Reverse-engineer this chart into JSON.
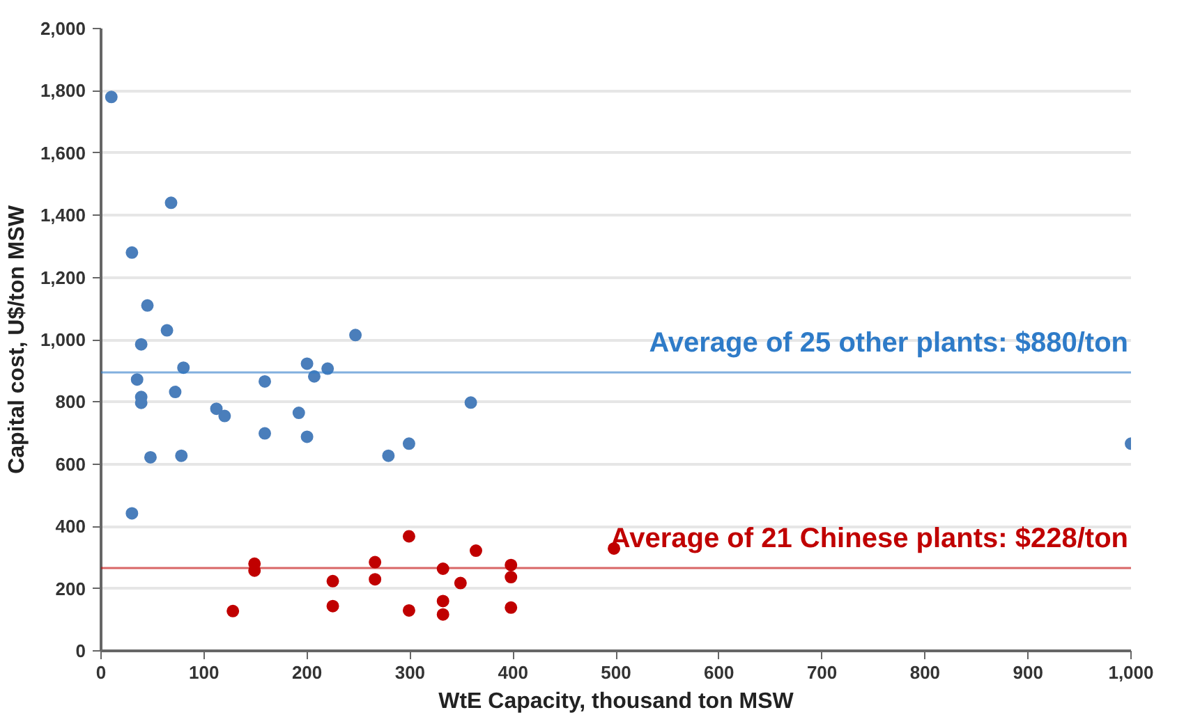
{
  "chart_data": {
    "type": "scatter",
    "xlabel": "WtE Capacity, thousand ton MSW",
    "ylabel": "Capital cost, U$/ton MSW",
    "xlim": [
      0,
      1000
    ],
    "ylim": [
      0,
      2000
    ],
    "xticks": [
      0,
      100,
      200,
      300,
      400,
      500,
      600,
      700,
      800,
      900,
      {
        "value": 1000,
        "label": "1,000"
      }
    ],
    "yticks": [
      0,
      200,
      400,
      600,
      800,
      {
        "value": 1000,
        "label": "1,000"
      },
      {
        "value": 1200,
        "label": "1,200"
      },
      {
        "value": 1400,
        "label": "1,400"
      },
      {
        "value": 1600,
        "label": "1,600"
      },
      {
        "value": 1800,
        "label": "1,800"
      },
      {
        "value": 2000,
        "label": "2,000"
      }
    ],
    "grid": "y",
    "marker": "circle",
    "series": [
      {
        "color": "#4a7ebb",
        "x": [
          10,
          68,
          30,
          45,
          64,
          39,
          247,
          35,
          39,
          39,
          80,
          72,
          48,
          78,
          30,
          112,
          120,
          159,
          159,
          200,
          207,
          220,
          192,
          200,
          279,
          299,
          359,
          1000
        ],
        "values": [
          1780,
          1440,
          1280,
          1110,
          1030,
          985,
          1015,
          872,
          816,
          797,
          910,
          832,
          622,
          627,
          442,
          778,
          755,
          866,
          699,
          923,
          882,
          907,
          765,
          688,
          627,
          666,
          798,
          666
        ]
      },
      {
        "color": "#c00000",
        "x": [
          128,
          149,
          149,
          225,
          225,
          266,
          266,
          299,
          299,
          332,
          332,
          332,
          349,
          364,
          398,
          398,
          398,
          498
        ],
        "values": [
          128,
          280,
          258,
          224,
          144,
          285,
          230,
          368,
          130,
          264,
          160,
          117,
          218,
          322,
          276,
          237,
          139,
          329
        ]
      }
    ],
    "ref_lines": [
      {
        "axis": "y",
        "value": 895,
        "color": "#2e7bc8"
      },
      {
        "axis": "y",
        "value": 266,
        "color": "#c00000"
      }
    ],
    "annotations": [
      "Average of 25 other plants: $880/ton",
      "Average of 21 Chinese plants: $228/ton"
    ]
  }
}
